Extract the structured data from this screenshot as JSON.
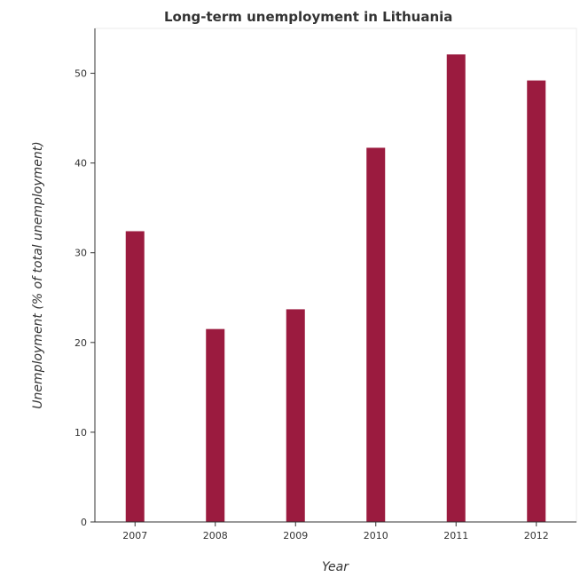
{
  "chart_data": {
    "type": "bar",
    "title": "Long-term unemployment in Lithuania",
    "xlabel": "Year",
    "ylabel": "Unemployment (% of total unemployment)",
    "categories": [
      "2007",
      "2008",
      "2009",
      "2010",
      "2011",
      "2012"
    ],
    "values": [
      32.4,
      21.5,
      23.7,
      41.7,
      52.1,
      49.2
    ],
    "ylim": [
      0,
      55
    ],
    "yticks": [
      0,
      10,
      20,
      30,
      40,
      50
    ],
    "grid": false,
    "bar_color": "#9b1b3f"
  }
}
